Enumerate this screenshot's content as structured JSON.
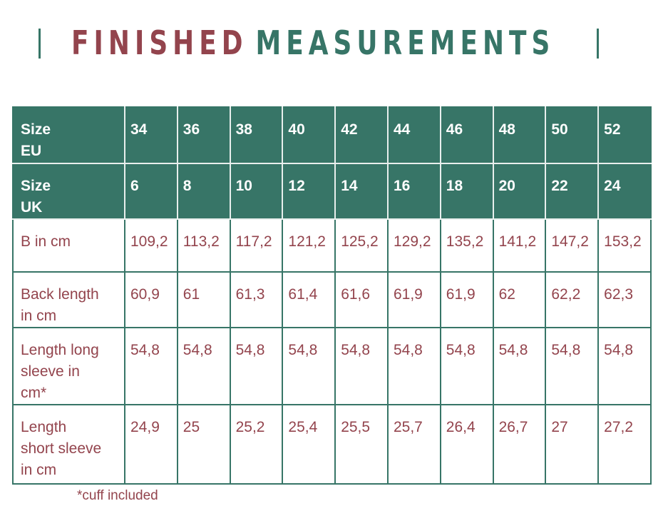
{
  "title": {
    "word1": "FINISHED",
    "word2": "MEASUREMENTS"
  },
  "colors": {
    "green": "#377567",
    "red": "#93444d"
  },
  "table": {
    "rows": [
      {
        "label": [
          "Size",
          "EU"
        ],
        "values": [
          "34",
          "36",
          "38",
          "40",
          "42",
          "44",
          "46",
          "48",
          "50",
          "52"
        ],
        "header": true
      },
      {
        "label": [
          "Size",
          "UK"
        ],
        "values": [
          "6",
          "8",
          "10",
          "12",
          "14",
          "16",
          "18",
          "20",
          "22",
          "24"
        ],
        "header": true
      },
      {
        "label": [
          "B in cm"
        ],
        "values": [
          "109,2",
          "113,2",
          "117,2",
          "121,2",
          "125,2",
          "129,2",
          "135,2",
          "141,2",
          "147,2",
          "153,2"
        ]
      },
      {
        "label": [
          "Back length",
          "in cm"
        ],
        "values": [
          "60,9",
          "61",
          "61,3",
          "61,4",
          "61,6",
          "61,9",
          "61,9",
          "62",
          "62,2",
          "62,3"
        ]
      },
      {
        "label": [
          "Length long",
          "sleeve in",
          "cm*"
        ],
        "values": [
          "54,8",
          "54,8",
          "54,8",
          "54,8",
          "54,8",
          "54,8",
          "54,8",
          "54,8",
          "54,8",
          "54,8"
        ]
      },
      {
        "label": [
          "Length",
          "short sleeve",
          "in cm"
        ],
        "values": [
          "24,9",
          "25",
          "25,2",
          "25,4",
          "25,5",
          "25,7",
          "26,4",
          "26,7",
          "27",
          "27,2"
        ]
      }
    ]
  },
  "footnote": "*cuff included"
}
